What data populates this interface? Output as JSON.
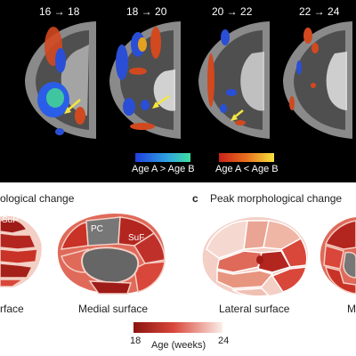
{
  "top_panel": {
    "slice_labels": [
      "16 → 18",
      "18 → 20",
      "20 → 22",
      "22 → 24"
    ],
    "colorbar_blue_label": "Age A > Age B",
    "colorbar_red_label": "Age A < Age B"
  },
  "panel_b": {
    "title_partial": "ological change",
    "labels": {
      "sup": "SuP",
      "pc": "PC",
      "suf": "SuF"
    },
    "lateral_caption_partial": "rface",
    "medial_caption": "Medial surface"
  },
  "panel_c": {
    "letter": "c",
    "title": "Peak morphological change",
    "lateral_caption": "Lateral surface",
    "medial_caption_partial": "M"
  },
  "age_colorbar": {
    "min": "18",
    "max": "24",
    "label": "Age (weeks)"
  },
  "colors": {
    "peak_dark": "#9e1b17",
    "peak_mid": "#d9473a",
    "peak_light": "#f3cfc5",
    "unaffected": "#777777"
  }
}
